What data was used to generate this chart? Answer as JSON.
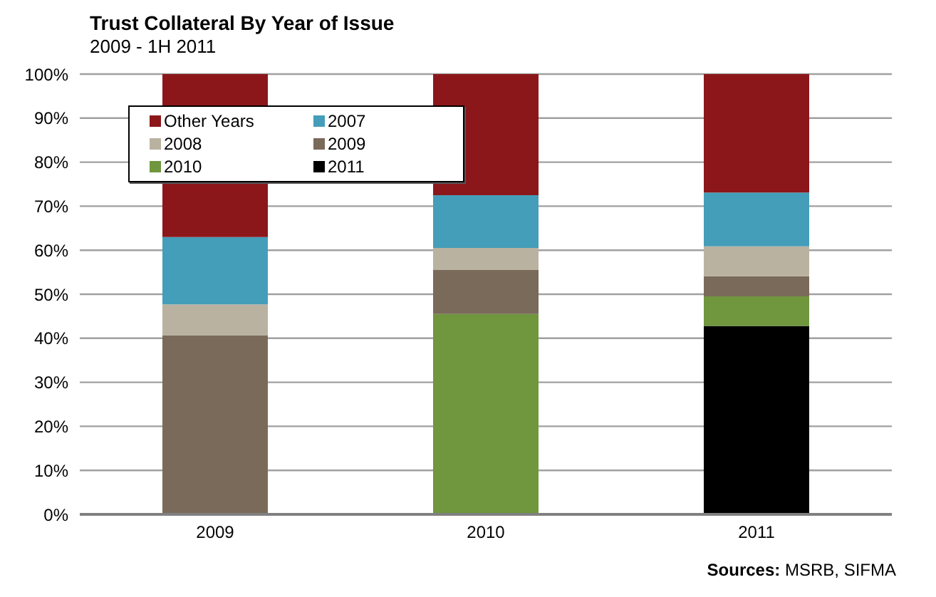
{
  "chart_data": {
    "type": "bar",
    "title": "Trust Collateral By Year of Issue",
    "subtitle": "2009 - 1H 2011",
    "categories": [
      "2009",
      "2010",
      "2011"
    ],
    "stacked": true,
    "series": [
      {
        "name": "2011",
        "color": "#000000",
        "values": [
          null,
          null,
          42.8
        ]
      },
      {
        "name": "2010",
        "color": "#70963e",
        "values": [
          null,
          45.5,
          6.7
        ]
      },
      {
        "name": "2009",
        "color": "#7a6a5a",
        "values": [
          40.7,
          10,
          4.6
        ]
      },
      {
        "name": "2008",
        "color": "#bab2a0",
        "values": [
          7,
          5,
          6.8
        ]
      },
      {
        "name": "2007",
        "color": "#449eb9",
        "values": [
          15.3,
          12,
          12.2
        ]
      },
      {
        "name": "Other Years",
        "color": "#8b171b",
        "values": [
          37,
          27.5,
          26.9
        ]
      }
    ],
    "ylim": [
      0,
      100
    ],
    "yticks": [
      {
        "value": 0,
        "label": "0%"
      },
      {
        "value": 10,
        "label": "10%"
      },
      {
        "value": 20,
        "label": "20%"
      },
      {
        "value": 30,
        "label": "30%"
      },
      {
        "value": 40,
        "label": "40%"
      },
      {
        "value": 50,
        "label": "50%"
      },
      {
        "value": 60,
        "label": "60%"
      },
      {
        "value": 70,
        "label": "70%"
      },
      {
        "value": 80,
        "label": "80%"
      },
      {
        "value": 90,
        "label": "90%"
      },
      {
        "value": 100,
        "label": "100%"
      }
    ],
    "grid": "y",
    "legend": "top left",
    "annotations": [
      "Sources: MSRB, SIFMA"
    ]
  }
}
